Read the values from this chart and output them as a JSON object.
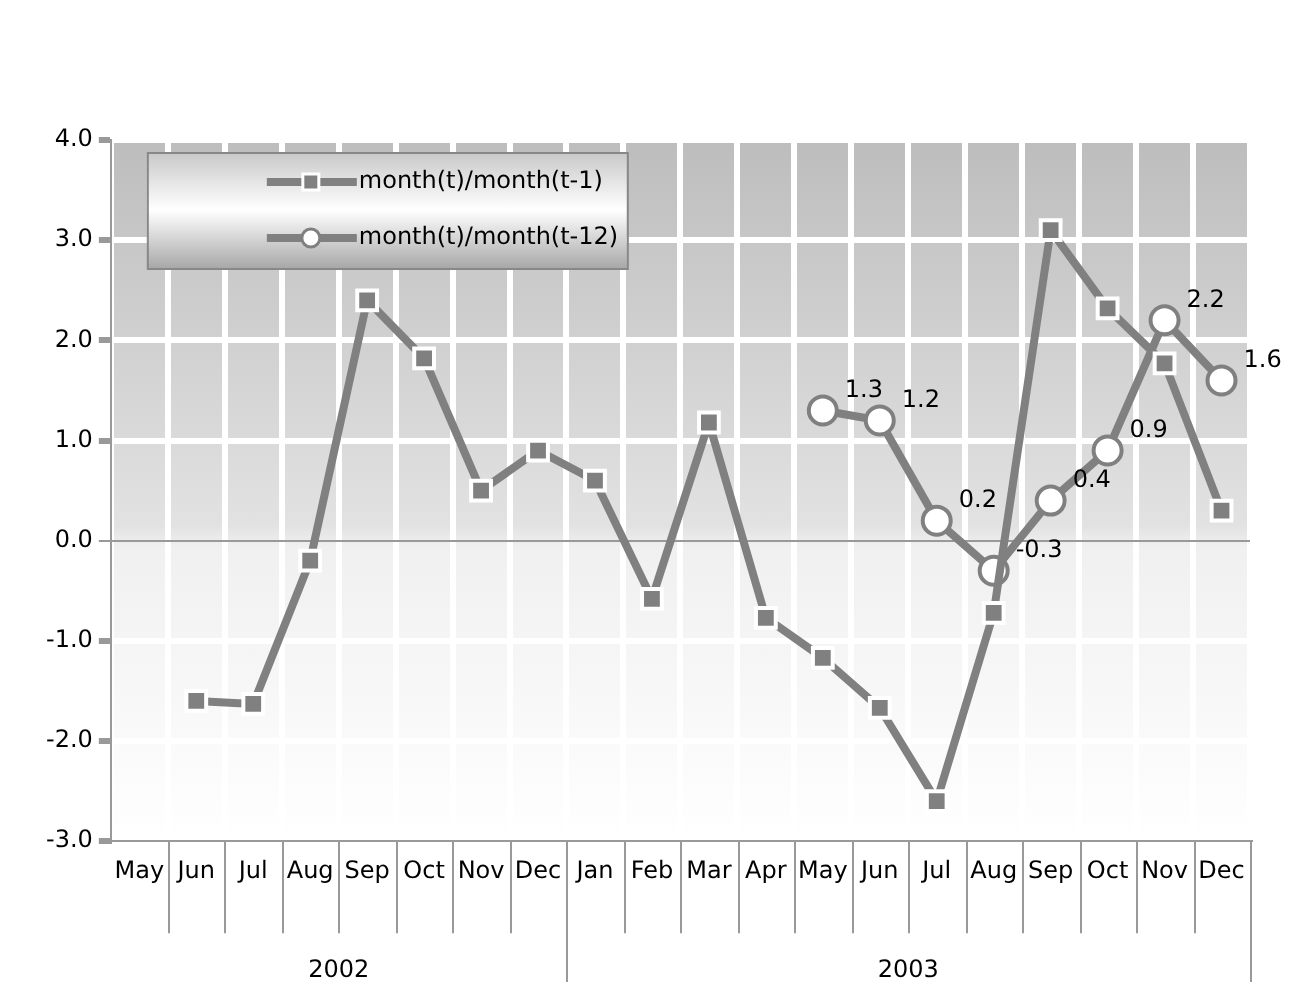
{
  "chart_data": {
    "type": "line",
    "categories": [
      "May",
      "Jun",
      "Jul",
      "Aug",
      "Sep",
      "Oct",
      "Nov",
      "Dec",
      "Jan",
      "Feb",
      "Mar",
      "Apr",
      "May",
      "Jun",
      "Jul",
      "Aug",
      "Sep",
      "Oct",
      "Nov",
      "Dec"
    ],
    "annotations": [
      "2002",
      "2003"
    ],
    "series": [
      {
        "name": "month(t)/month(t-1)",
        "color": "#808080",
        "marker": "square",
        "values": [
          null,
          -1.6,
          -1.63,
          -0.2,
          2.4,
          1.82,
          0.5,
          0.9,
          0.6,
          -0.58,
          1.18,
          -0.77,
          -1.17,
          -1.67,
          -2.6,
          -0.72,
          3.1,
          2.32,
          1.77,
          0.3
        ]
      },
      {
        "name": "month(t)/month(t-12)",
        "color": "#808080",
        "marker": "circle",
        "values": [
          null,
          null,
          null,
          null,
          null,
          null,
          null,
          null,
          null,
          null,
          null,
          null,
          1.3,
          1.2,
          0.2,
          -0.3,
          0.4,
          0.9,
          2.2,
          1.6
        ],
        "value_labels": [
          null,
          null,
          null,
          null,
          null,
          null,
          null,
          null,
          null,
          null,
          null,
          null,
          "1.3",
          "1.2",
          "0.2",
          "-0.3",
          "0.4",
          "0.9",
          "2.2",
          "1.6"
        ]
      }
    ],
    "ylim": [
      -3,
      4
    ],
    "yticks": [
      {
        "value": -3,
        "label": "-3.0"
      },
      {
        "value": -2,
        "label": "-2.0"
      },
      {
        "value": -1,
        "label": "-1.0"
      },
      {
        "value": 0,
        "label": "0.0"
      },
      {
        "value": 1,
        "label": "1.0"
      },
      {
        "value": 2,
        "label": "2.0"
      },
      {
        "value": 3,
        "label": "3.0"
      },
      {
        "value": 4,
        "label": "4.0"
      }
    ],
    "grid": true,
    "legend": "top left",
    "line_style": "solid"
  }
}
